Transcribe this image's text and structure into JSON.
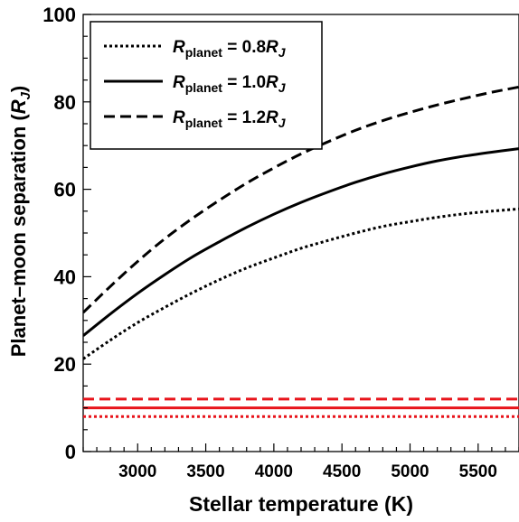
{
  "chart_data": {
    "type": "line",
    "xlabel": "Stellar temperature (K)",
    "ylabel": "Planet–moon separation",
    "ylabel_unit_symbol": "R",
    "ylabel_unit_subscript": "J",
    "xlim": [
      2600,
      5800
    ],
    "ylim": [
      0,
      100
    ],
    "x_ticks": [
      3000,
      3500,
      4000,
      4500,
      5000,
      5500
    ],
    "y_ticks": [
      0,
      20,
      40,
      60,
      80,
      100
    ],
    "grid": false,
    "legend_position": "top-left",
    "series": [
      {
        "name": "R_planet = 0.8R_J",
        "legend": {
          "symbol": "R",
          "subscript": "planet",
          "middle": " = 0.8",
          "unit_symbol": "R",
          "unit_subscript": "J"
        },
        "style": "dotted",
        "color": "#000000",
        "x": [
          2600,
          2800,
          3000,
          3200,
          3400,
          3600,
          3800,
          4000,
          4200,
          4400,
          4600,
          4800,
          5000,
          5200,
          5400,
          5600,
          5800
        ],
        "y": [
          21.2,
          25.5,
          29.5,
          33.0,
          36.3,
          39.3,
          42.0,
          44.3,
          46.5,
          48.3,
          50.0,
          51.5,
          52.6,
          53.6,
          54.4,
          55.0,
          55.5
        ]
      },
      {
        "name": "R_planet = 1.0R_J",
        "legend": {
          "symbol": "R",
          "subscript": "planet",
          "middle": " = 1.0",
          "unit_symbol": "R",
          "unit_subscript": "J"
        },
        "style": "solid",
        "color": "#000000",
        "x": [
          2600,
          2800,
          3000,
          3200,
          3400,
          3600,
          3800,
          4000,
          4200,
          4400,
          4600,
          4800,
          5000,
          5200,
          5400,
          5600,
          5800
        ],
        "y": [
          26.5,
          31.5,
          36.2,
          40.5,
          44.5,
          48.0,
          51.3,
          54.3,
          57.0,
          59.4,
          61.6,
          63.5,
          65.1,
          66.5,
          67.6,
          68.5,
          69.3
        ]
      },
      {
        "name": "R_planet = 1.2R_J",
        "legend": {
          "symbol": "R",
          "subscript": "planet",
          "middle": " = 1.2",
          "unit_symbol": "R",
          "unit_subscript": "J"
        },
        "style": "dashed",
        "color": "#000000",
        "x": [
          2600,
          2800,
          3000,
          3200,
          3400,
          3600,
          3800,
          4000,
          4200,
          4400,
          4600,
          4800,
          5000,
          5200,
          5400,
          5600,
          5800
        ],
        "y": [
          31.8,
          37.8,
          43.5,
          48.7,
          53.3,
          57.5,
          61.4,
          64.9,
          68.1,
          70.9,
          73.5,
          75.7,
          77.6,
          79.3,
          80.8,
          82.2,
          83.4
        ]
      },
      {
        "style": "dotted",
        "color": "#e8141b",
        "x": [
          2600,
          5800
        ],
        "y": [
          8.0,
          8.0
        ]
      },
      {
        "style": "solid",
        "color": "#e8141b",
        "x": [
          2600,
          5800
        ],
        "y": [
          10.0,
          10.0
        ]
      },
      {
        "style": "dashed",
        "color": "#e8141b",
        "x": [
          2600,
          5800
        ],
        "y": [
          12.0,
          12.0
        ]
      }
    ]
  }
}
